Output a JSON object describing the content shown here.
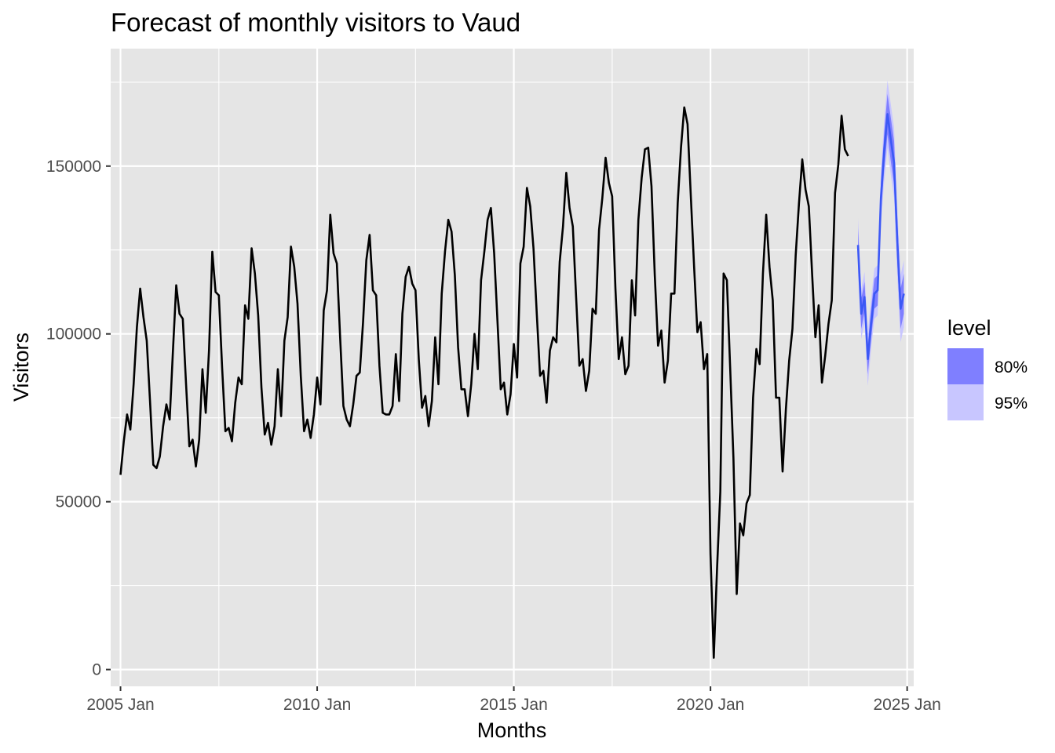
{
  "chart_data": {
    "type": "line",
    "title": "Forecast of monthly visitors to Vaud",
    "xlabel": "Months",
    "ylabel": "Visitors",
    "x_ticks": [
      "2005 Jan",
      "2010 Jan",
      "2015 Jan",
      "2020 Jan",
      "2025 Jan"
    ],
    "y_ticks": [
      "0",
      "50000",
      "100000",
      "150000"
    ],
    "xlim": [
      "2004-10",
      "2025-03"
    ],
    "ylim": [
      -5000,
      185000
    ],
    "grid": true,
    "legend": {
      "title": "level",
      "position": "right",
      "entries": [
        {
          "label": "80%",
          "color": "#7f7fff"
        },
        {
          "label": "95%",
          "color": "#c8c6ff"
        }
      ]
    },
    "colors": {
      "panel": "#e5e5e5",
      "grid_major": "#ffffff",
      "history_line": "#000000",
      "forecast_line": "#3c58f5",
      "band80": "#7f7fff",
      "band95": "#c8c6ff"
    },
    "series": [
      {
        "start": "2005-01",
        "frequency": "monthly",
        "values": [
          58000,
          68000,
          76000,
          71500,
          85000,
          102000,
          113500,
          105000,
          98000,
          80000,
          61000,
          60000,
          63500,
          72500,
          79000,
          74500,
          95000,
          114500,
          106000,
          104500,
          85000,
          66500,
          68500,
          60500,
          68500,
          89500,
          76500,
          95000,
          124500,
          112500,
          111500,
          90000,
          71000,
          72000,
          68000,
          79500,
          87000,
          85000,
          108500,
          104500,
          125500,
          118000,
          105500,
          84000,
          70000,
          73500,
          67000,
          72500,
          89500,
          75500,
          98000,
          105000,
          126000,
          120000,
          109000,
          87500,
          71000,
          74500,
          69000,
          76000,
          87000,
          79000,
          107000,
          113000,
          135500,
          124000,
          121000,
          99000,
          78500,
          74500,
          72500,
          79000,
          87500,
          88500,
          103500,
          122000,
          129500,
          113000,
          111500,
          90500,
          76500,
          76000,
          76000,
          78500,
          94000,
          80000,
          106000,
          117000,
          120000,
          115000,
          113000,
          92500,
          78000,
          81500,
          72500,
          80000,
          99000,
          85000,
          112000,
          124500,
          134000,
          130500,
          117500,
          96000,
          83500,
          83500,
          75500,
          85000,
          100000,
          89500,
          116000,
          124500,
          134000,
          137500,
          124000,
          104000,
          83500,
          85500,
          76000,
          82000,
          97000,
          87000,
          121000,
          126000,
          143500,
          138000,
          125500,
          106000,
          87500,
          89000,
          79500,
          95000,
          99000,
          97500,
          121500,
          132000,
          148000,
          137500,
          132000,
          111000,
          90500,
          92500,
          83000,
          89000,
          107500,
          106000,
          131000,
          140500,
          152500,
          145000,
          141000,
          113500,
          92500,
          99000,
          88000,
          90500,
          116000,
          105500,
          134000,
          146500,
          155000,
          155500,
          144000,
          117500,
          96500,
          101000,
          85500,
          92000,
          112000,
          112000,
          139000,
          155500,
          167500,
          162500,
          141000,
          120000,
          100500,
          103500,
          89500,
          94000,
          34500,
          3500,
          30000,
          53000,
          118000,
          116000,
          90000,
          63000,
          22500,
          43500,
          40000,
          49500,
          52000,
          81000,
          95500,
          91000,
          118000,
          135500,
          120000,
          110000,
          81000,
          81000,
          59000,
          77500,
          92000,
          101500,
          123500,
          139000,
          152000,
          143000,
          138000,
          118000,
          99000,
          108500,
          85500,
          93500,
          103000,
          110000,
          142000,
          150500,
          165000,
          155000,
          153000
        ]
      }
    ],
    "forecast": {
      "start": "2023-10",
      "values": [
        126500,
        106000,
        111000,
        92500,
        103000,
        112000,
        113000,
        140500,
        154500,
        165500,
        158000,
        151000,
        127500,
        107500,
        112000
      ],
      "lower80": [
        121500,
        101500,
        106500,
        88000,
        98500,
        107500,
        108500,
        135500,
        149000,
        159500,
        151500,
        144500,
        121000,
        101500,
        106000
      ],
      "upper80": [
        131500,
        110500,
        115500,
        97000,
        107500,
        116500,
        117500,
        145500,
        160000,
        171500,
        164500,
        157500,
        134000,
        113500,
        118000
      ],
      "lower95": [
        118500,
        98500,
        103500,
        84500,
        95500,
        104500,
        105500,
        132500,
        145500,
        155500,
        147500,
        140500,
        117000,
        97500,
        102000
      ],
      "upper95": [
        134500,
        113500,
        118500,
        100500,
        110500,
        119500,
        120500,
        148500,
        163500,
        175500,
        168500,
        161500,
        138000,
        117500,
        122000
      ]
    }
  }
}
